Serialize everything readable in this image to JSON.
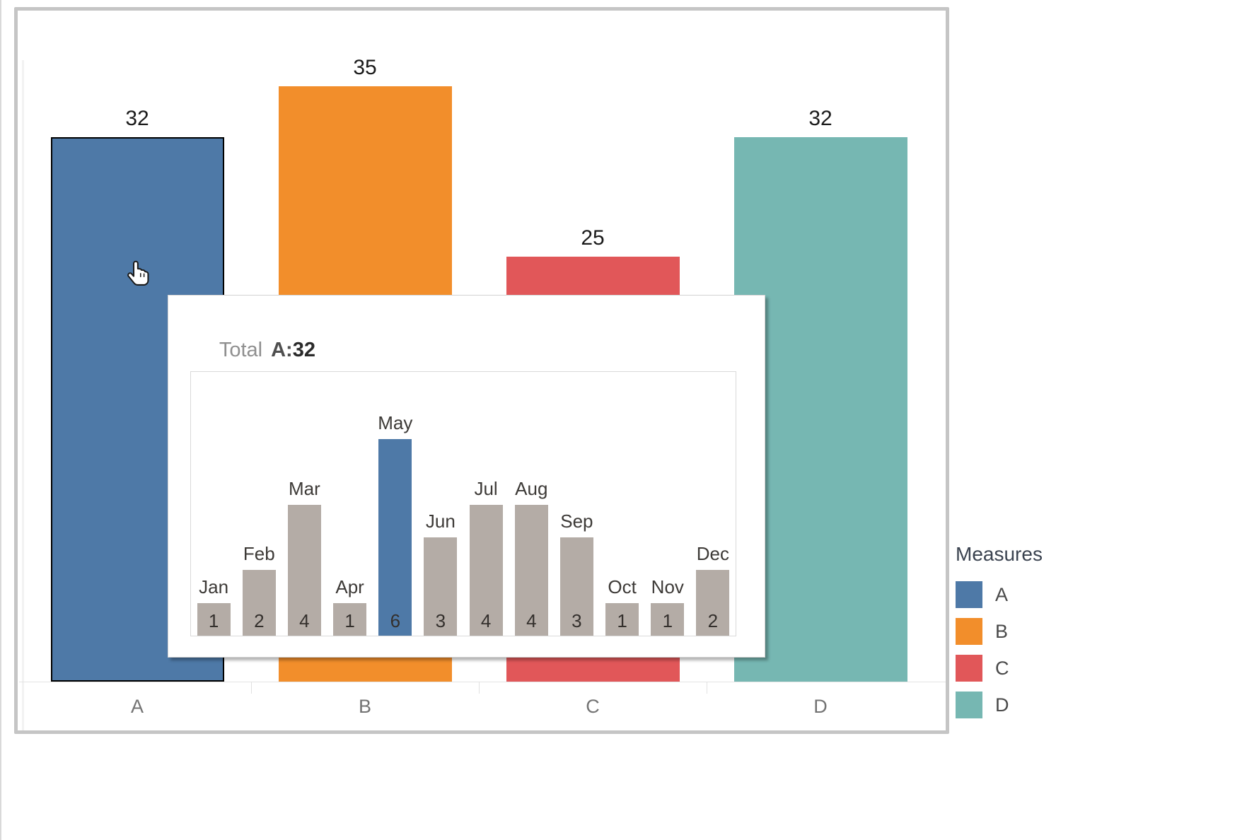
{
  "legend": {
    "title": "Measures",
    "items": [
      {
        "label": "A",
        "color": "#4e79a7"
      },
      {
        "label": "B",
        "color": "#f28e2b"
      },
      {
        "label": "C",
        "color": "#e15759"
      },
      {
        "label": "D",
        "color": "#76b7b2"
      }
    ]
  },
  "tooltip": {
    "prefix": "Total",
    "measure": "A",
    "separator": ":",
    "value": "32"
  },
  "cursor": {
    "icon": "hand-pointer-icon"
  },
  "chart_data": [
    {
      "type": "bar",
      "title": "",
      "categories": [
        "A",
        "B",
        "C",
        "D"
      ],
      "values": [
        32,
        35,
        25,
        32
      ],
      "colors": [
        "#4e79a7",
        "#f28e2b",
        "#e15759",
        "#76b7b2"
      ],
      "selected_category": "A",
      "data_labels_shown": true,
      "ylim": [
        0,
        40
      ],
      "grid": false,
      "legend_position": "right"
    },
    {
      "type": "bar",
      "title": "Total A:32",
      "categories": [
        "Jan",
        "Feb",
        "Mar",
        "Apr",
        "May",
        "Jun",
        "Jul",
        "Aug",
        "Sep",
        "Oct",
        "Nov",
        "Dec"
      ],
      "values": [
        1,
        2,
        4,
        1,
        6,
        3,
        4,
        4,
        3,
        1,
        1,
        2
      ],
      "highlight_category": "May",
      "default_color": "#b4aca6",
      "highlight_color": "#4e79a7",
      "data_labels_shown": true,
      "ylim": [
        0,
        6
      ],
      "grid": false
    }
  ]
}
